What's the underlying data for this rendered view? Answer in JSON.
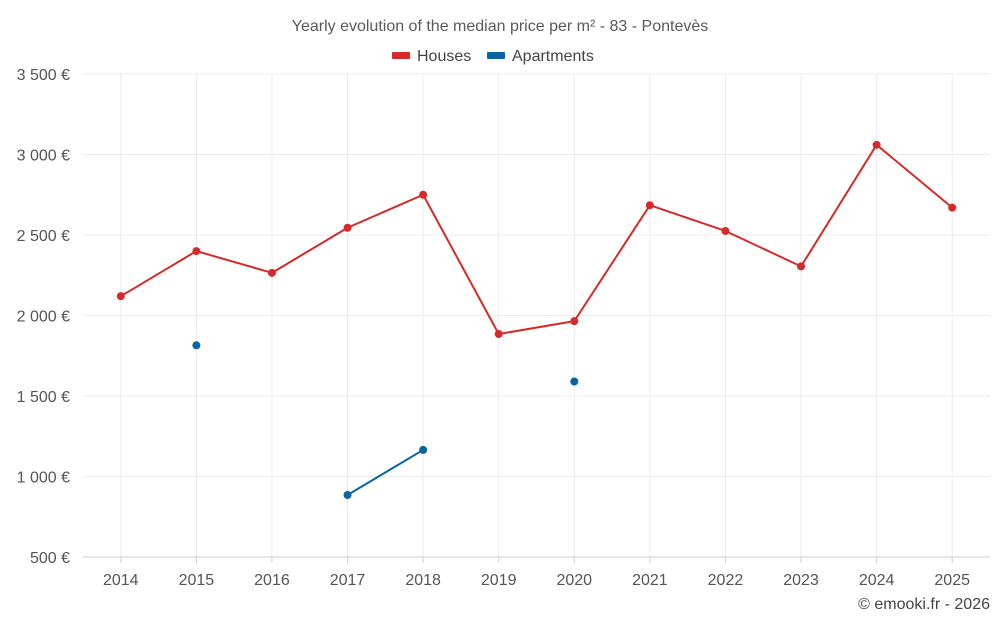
{
  "chart_data": {
    "type": "line",
    "title": "Yearly evolution of the median price per m² - 83 - Pontevès",
    "categories": [
      "2014",
      "2015",
      "2016",
      "2017",
      "2018",
      "2019",
      "2020",
      "2021",
      "2022",
      "2023",
      "2024",
      "2025"
    ],
    "ylim": [
      500,
      3500
    ],
    "yticks": [
      500,
      1000,
      1500,
      2000,
      2500,
      3000,
      3500
    ],
    "ytick_labels": [
      "500 €",
      "1 000 €",
      "1 500 €",
      "2 000 €",
      "2 500 €",
      "3 000 €",
      "3 500 €"
    ],
    "grid": true,
    "legend_position": "top-center",
    "series": [
      {
        "name": "Houses",
        "color": "#d62a2a",
        "values": [
          2120,
          2400,
          2265,
          2545,
          2750,
          1885,
          1965,
          2685,
          2525,
          2305,
          3060,
          2670
        ]
      },
      {
        "name": "Apartments",
        "color": "#0a64a0",
        "values": [
          null,
          1815,
          null,
          885,
          1165,
          null,
          1590,
          null,
          null,
          null,
          null,
          null
        ]
      }
    ]
  },
  "credit": "© emooki.fr - 2026"
}
